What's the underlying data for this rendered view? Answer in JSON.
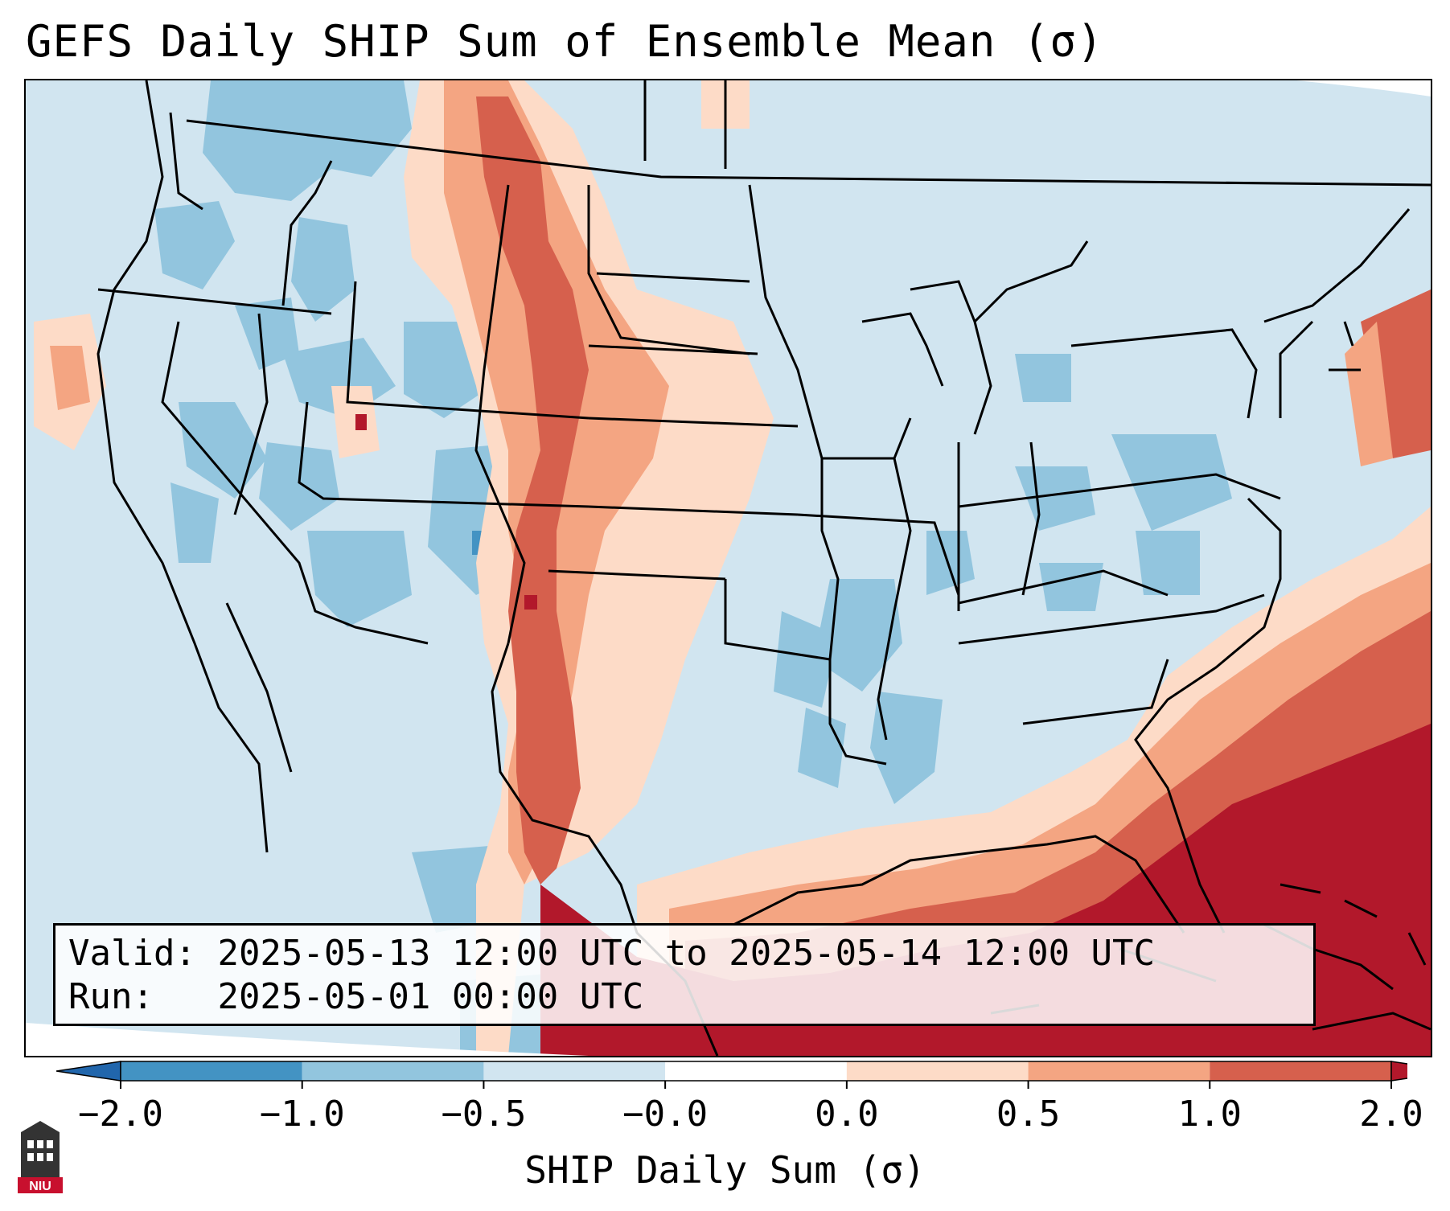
{
  "title": "GEFS Daily SHIP Sum of Ensemble Mean (σ)",
  "info": {
    "valid_label": "Valid:",
    "valid_value": "2025-05-13 12:00 UTC to 2025-05-14 12:00 UTC",
    "run_label": "Run:",
    "run_value": "2025-05-01 00:00 UTC"
  },
  "colorbar": {
    "label": "SHIP Daily Sum (σ)",
    "ticks": [
      "−2.0",
      "−1.0",
      "−0.5",
      "−0.0",
      "0.0",
      "0.5",
      "1.0",
      "2.0"
    ],
    "colors": [
      "#4393c3",
      "#92c5de",
      "#d1e5f0",
      "#ffffff",
      "#fddbc7",
      "#f4a582",
      "#d6604d",
      "#b2182b"
    ],
    "under_color": "#2166ac",
    "over_color": "#b2182b"
  },
  "logo": {
    "text": "NIU"
  },
  "map": {
    "ocean_color": "#d1e5f0",
    "border_color": "#000000"
  }
}
